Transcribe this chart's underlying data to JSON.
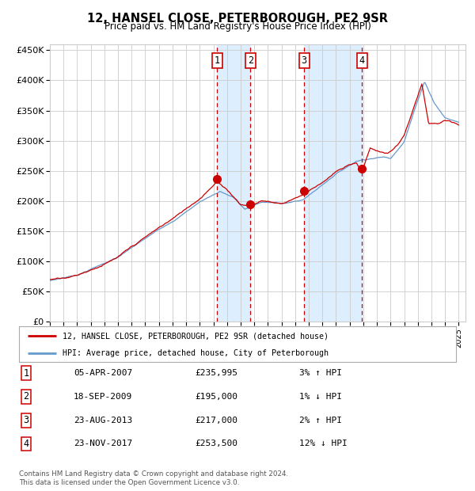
{
  "title": "12, HANSEL CLOSE, PETERBOROUGH, PE2 9SR",
  "subtitle": "Price paid vs. HM Land Registry's House Price Index (HPI)",
  "xlim_start": 1995.0,
  "xlim_end": 2025.5,
  "ylim": [
    0,
    460000
  ],
  "yticks": [
    0,
    50000,
    100000,
    150000,
    200000,
    250000,
    300000,
    350000,
    400000,
    450000
  ],
  "ytick_labels": [
    "£0",
    "£50K",
    "£100K",
    "£150K",
    "£200K",
    "£250K",
    "£300K",
    "£350K",
    "£400K",
    "£450K"
  ],
  "transactions": [
    {
      "num": 1,
      "date_str": "05-APR-2007",
      "date_x": 2007.27,
      "price": 235995,
      "pct": "3%",
      "dir": "↑"
    },
    {
      "num": 2,
      "date_str": "18-SEP-2009",
      "date_x": 2009.72,
      "price": 195000,
      "pct": "1%",
      "dir": "↓"
    },
    {
      "num": 3,
      "date_str": "23-AUG-2013",
      "date_x": 2013.65,
      "price": 217000,
      "pct": "2%",
      "dir": "↑"
    },
    {
      "num": 4,
      "date_str": "23-NOV-2017",
      "date_x": 2017.9,
      "price": 253500,
      "pct": "12%",
      "dir": "↓"
    }
  ],
  "legend_line1": "12, HANSEL CLOSE, PETERBOROUGH, PE2 9SR (detached house)",
  "legend_line2": "HPI: Average price, detached house, City of Peterborough",
  "line_color_red": "#cc0000",
  "line_color_blue": "#6699cc",
  "shade_color": "#ddeeff",
  "grid_color": "#cccccc",
  "dot_color": "#cc0000",
  "box_color": "#cc0000",
  "dashed_color": "#cc0000",
  "footer": "Contains HM Land Registry data © Crown copyright and database right 2024.\nThis data is licensed under the Open Government Licence v3.0.",
  "background_color": "#ffffff",
  "table_rows": [
    [
      "1",
      "05-APR-2007",
      "£235,995",
      "3% ↑ HPI"
    ],
    [
      "2",
      "18-SEP-2009",
      "£195,000",
      "1% ↓ HPI"
    ],
    [
      "3",
      "23-AUG-2013",
      "£217,000",
      "2% ↑ HPI"
    ],
    [
      "4",
      "23-NOV-2017",
      "£253,500",
      "12% ↓ HPI"
    ]
  ],
  "hpi_anchors_x": [
    1995.0,
    1997.0,
    2000.0,
    2002.5,
    2004.5,
    2006.0,
    2007.5,
    2008.5,
    2009.3,
    2010.5,
    2012.0,
    2013.5,
    2014.5,
    2016.0,
    2017.5,
    2018.5,
    2019.5,
    2020.0,
    2021.0,
    2021.8,
    2022.5,
    2023.2,
    2024.0,
    2025.0
  ],
  "hpi_anchors_y": [
    68000,
    78000,
    108000,
    145000,
    175000,
    200000,
    218000,
    208000,
    188000,
    200000,
    198000,
    203000,
    220000,
    248000,
    270000,
    275000,
    278000,
    275000,
    305000,
    360000,
    405000,
    370000,
    345000,
    338000
  ],
  "red_anchors_x": [
    1995.0,
    1997.0,
    2000.0,
    2002.5,
    2004.5,
    2006.0,
    2007.27,
    2008.0,
    2009.0,
    2009.72,
    2010.5,
    2012.0,
    2013.0,
    2013.65,
    2014.5,
    2016.0,
    2017.5,
    2017.9,
    2018.5,
    2019.0,
    2019.8,
    2020.5,
    2021.0,
    2021.8,
    2022.3,
    2022.8,
    2023.5,
    2024.0,
    2025.0
  ],
  "red_anchors_y": [
    70000,
    80000,
    110000,
    148000,
    178000,
    205000,
    235995,
    220000,
    198000,
    195000,
    205000,
    200000,
    210000,
    217000,
    230000,
    255000,
    270000,
    253500,
    295000,
    290000,
    285000,
    298000,
    315000,
    365000,
    398000,
    330000,
    330000,
    335000,
    325000
  ]
}
